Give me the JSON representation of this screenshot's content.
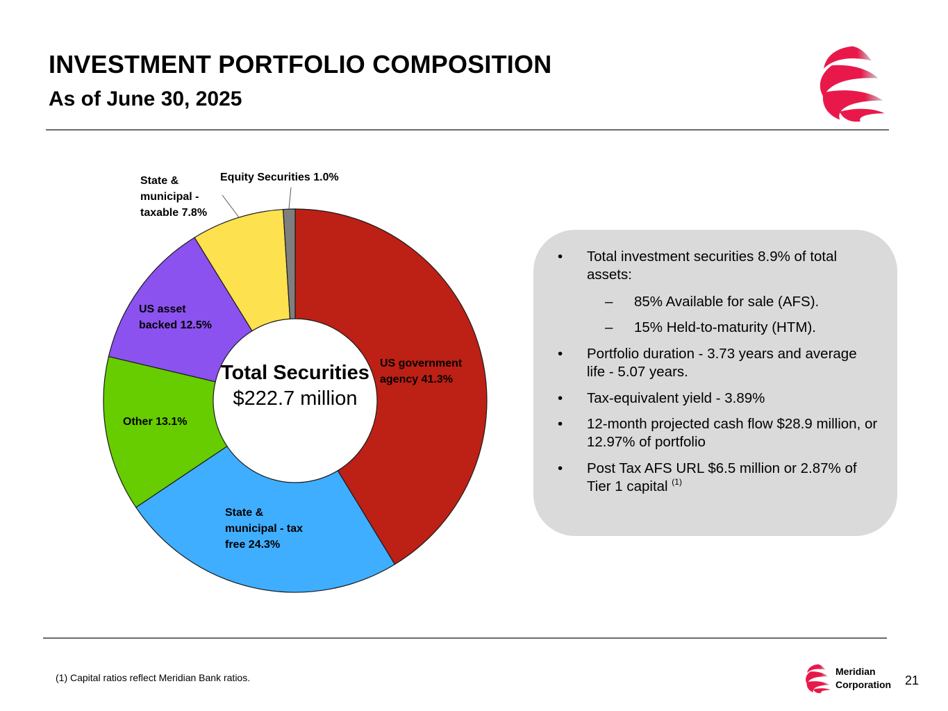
{
  "header": {
    "title": "INVESTMENT PORTFOLIO COMPOSITION",
    "subtitle": "As of June 30, 2025"
  },
  "chart_data": {
    "type": "pie",
    "style": "donut",
    "center_label_bold": "Total Securities",
    "center_label_value": "$222.7 million",
    "slices": [
      {
        "label": "US government agency 41.3%",
        "value": 41.3,
        "color": "#bd2015"
      },
      {
        "label": "State & municipal - tax free 24.3%",
        "value": 24.3,
        "color": "#40aeff"
      },
      {
        "label": "Other 13.1%",
        "value": 13.1,
        "color": "#67cc00"
      },
      {
        "label": "US asset backed 12.5%",
        "value": 12.5,
        "color": "#8b52ef"
      },
      {
        "label": "State & municipal - taxable 7.8%",
        "value": 7.8,
        "color": "#fde14f"
      },
      {
        "label": "Equity Securities 1.0%",
        "value": 1.0,
        "color": "#7f7f7f"
      }
    ],
    "label_lines": {
      "agency": [
        "US government",
        "agency 41.3%"
      ],
      "taxfree": [
        "State &",
        "municipal - tax",
        "free 24.3%"
      ],
      "other": [
        "Other 13.1%"
      ],
      "assetbacked": [
        "US asset",
        "backed 12.5%"
      ],
      "taxable": [
        "State &",
        "municipal -",
        "taxable 7.8%"
      ],
      "equity": [
        "Equity Securities 1.0%"
      ]
    },
    "start_angle": "12 o'clock",
    "direction": "clockwise",
    "legend": "none"
  },
  "info_box": {
    "bullets": [
      {
        "text": "Total investment securities 8.9% of total assets:"
      },
      {
        "text": "85% Available for sale (AFS).",
        "level": 2
      },
      {
        "text": "15% Held-to-maturity (HTM).",
        "level": 2
      },
      {
        "text": "Portfolio duration - 3.73 years and average life - 5.07 years."
      },
      {
        "text": "Tax-equivalent yield - 3.89%"
      },
      {
        "text": "12-month projected cash flow $28.9 million, or 12.97% of portfolio"
      },
      {
        "text": "Post Tax AFS URL $6.5 million or 2.87% of Tier 1 capital",
        "footnote_ref": "(1)"
      }
    ],
    "bullet_mark": "•",
    "sub_mark": "–",
    "background": "#dadada"
  },
  "footer": {
    "footnote": "(1) Capital ratios reflect Meridian Bank ratios.",
    "company_line1": "Meridian",
    "company_line2": "Corporation",
    "page_number": "21"
  },
  "brand": {
    "accent": "#e8194a",
    "logo": "meridian-swirl-logo"
  }
}
